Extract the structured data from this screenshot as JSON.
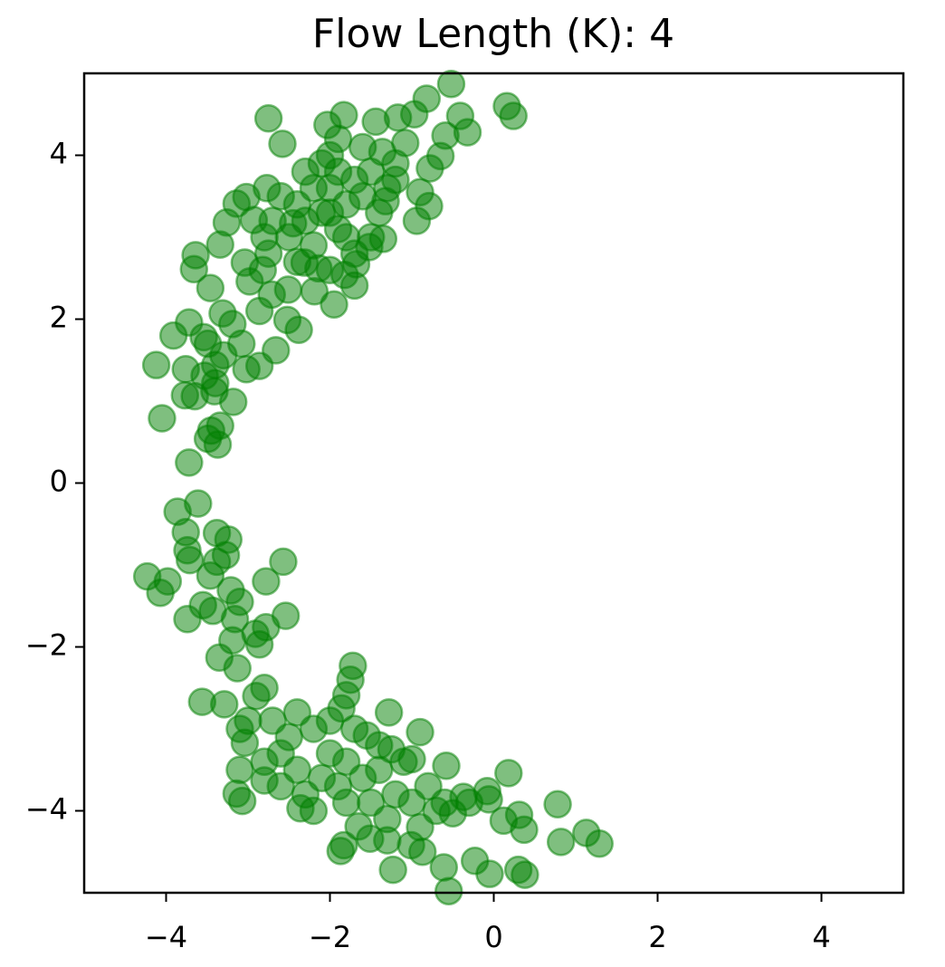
{
  "chart_data": {
    "type": "scatter",
    "title": "Flow Length (K): 4",
    "color": "#008000",
    "alpha": 0.5,
    "xlim": [
      -5,
      5
    ],
    "ylim": [
      -5,
      5
    ],
    "xticks": [
      {
        "value": -4,
        "label": "−4"
      },
      {
        "value": -2,
        "label": "−2"
      },
      0,
      2,
      4
    ],
    "yticks": [
      {
        "value": -4,
        "label": "−4"
      },
      {
        "value": -2,
        "label": "−2"
      },
      0,
      2,
      4
    ],
    "x": [
      -0.52,
      0.16,
      0.24,
      -0.82,
      -2.75,
      -2.58,
      -0.41,
      -0.32,
      -0.59,
      -0.97,
      -1.17,
      -0.94,
      -0.79,
      -0.9,
      -0.78,
      -0.65,
      -1.83,
      -2.03,
      -1.44,
      -1.08,
      -1.36,
      -1.95,
      -1.7,
      -2.38,
      -2.52,
      -2.66,
      -2.86,
      -3.02,
      -3.18,
      -3.41,
      -3.65,
      -3.77,
      -3.76,
      -4.12,
      -4.05,
      -3.91,
      -3.72,
      -3.54,
      -3.49,
      -3.3,
      -3.72,
      -3.49,
      -3.37,
      -3.34,
      -3.45,
      -3.66,
      -3.64,
      -3.46,
      -3.34,
      -3.26,
      -3.14,
      -3.02,
      -2.77,
      -2.93,
      -3.04,
      -2.98,
      -2.82,
      -2.71,
      -2.75,
      -2.45,
      -2.51,
      -2.19,
      -2.86,
      -3.08,
      -3.31,
      -3.19,
      -3.4,
      -3.53,
      -3.4,
      -1.32,
      -1.2,
      -1.35,
      -1.52,
      -1.68,
      -1.82,
      -2.14,
      -2.31,
      -2.0,
      -1.9,
      -2.1,
      -1.8,
      -2.2,
      -1.7,
      -2.3,
      -1.9,
      -2.0,
      -1.6,
      -2.4,
      -1.5,
      -2.5,
      -1.8,
      -2.1,
      -1.6,
      -2.6,
      -1.4,
      -2.2,
      -1.7,
      -2.0,
      -2.4,
      -1.3,
      -2.7,
      -1.9,
      -2.3,
      -1.5,
      -2.8,
      -1.2,
      -2.0,
      -3.86,
      -3.61,
      -3.76,
      -3.74,
      -3.71,
      -4.23,
      -3.98,
      -4.07,
      -3.38,
      -3.24,
      -3.27,
      -3.38,
      -3.46,
      -2.57,
      -2.78,
      -3.21,
      -3.1,
      -3.55,
      -3.43,
      -3.74,
      -2.54,
      -3.16,
      -2.78,
      -2.91,
      -2.86,
      -3.19,
      -3.35,
      -3.13,
      -1.72,
      -1.75,
      -1.8,
      -1.86,
      -3.56,
      -3.29,
      -1.28,
      -0.9,
      -1.55,
      -1.25,
      -1.0,
      -0.58,
      0.18,
      -0.08,
      -0.06,
      -0.37,
      -0.5,
      0.12,
      0.31,
      0.37,
      0.78,
      0.82,
      1.13,
      1.29,
      -0.23,
      -0.61,
      -0.05,
      0.3,
      0.38,
      -0.55,
      -1.23,
      -0.87,
      -1.01,
      -1.3,
      -1.83,
      -1.87,
      -1.51,
      -1.65,
      -3.07,
      -3.14,
      -3.1,
      -3.04,
      -2.8,
      -2.36,
      -2.2,
      -2.0,
      -2.4,
      -1.8,
      -2.5,
      -1.6,
      -2.3,
      -1.9,
      -2.7,
      -2.9,
      -2.6,
      -1.4,
      -1.2,
      -1.0,
      -0.8,
      -0.7,
      -2.1,
      -1.7,
      -2.8,
      -3.0,
      -1.5,
      -1.3,
      -0.9,
      -2.2,
      -2.4,
      -1.1,
      -0.6,
      -0.3,
      -2.0,
      -2.6,
      -3.1,
      -2.8,
      -1.8,
      -1.4
    ],
    "y": [
      4.87,
      4.6,
      4.48,
      4.69,
      4.45,
      4.14,
      4.48,
      4.28,
      4.24,
      4.5,
      4.46,
      3.2,
      3.38,
      3.55,
      3.84,
      3.99,
      4.49,
      4.37,
      4.41,
      4.15,
      4.04,
      2.18,
      2.41,
      1.87,
      1.99,
      1.62,
      1.43,
      1.39,
      0.99,
      1.12,
      1.06,
      1.07,
      1.39,
      1.44,
      0.79,
      1.8,
      1.96,
      1.78,
      1.7,
      1.56,
      0.25,
      0.54,
      0.47,
      0.7,
      0.64,
      2.61,
      2.78,
      2.38,
      2.91,
      3.18,
      3.41,
      3.49,
      3.6,
      3.21,
      2.69,
      2.46,
      2.6,
      2.3,
      2.8,
      3.17,
      2.36,
      2.34,
      2.1,
      1.7,
      2.07,
      1.94,
      1.44,
      1.31,
      1.22,
      3.44,
      3.7,
      2.98,
      2.88,
      2.67,
      2.54,
      2.62,
      2.69,
      3.6,
      3.8,
      3.3,
      3.4,
      3.6,
      3.7,
      3.2,
      3.1,
      4.0,
      3.5,
      3.4,
      3.8,
      3.0,
      3.0,
      3.9,
      4.1,
      3.5,
      3.3,
      2.9,
      2.8,
      2.6,
      2.7,
      3.6,
      3.2,
      4.2,
      3.8,
      3.0,
      3.0,
      3.9,
      3.3,
      -0.35,
      -0.25,
      -0.6,
      -0.82,
      -0.94,
      -1.14,
      -1.2,
      -1.34,
      -0.61,
      -0.69,
      -0.88,
      -0.96,
      -1.13,
      -0.96,
      -1.2,
      -1.31,
      -1.45,
      -1.49,
      -1.56,
      -1.66,
      -1.62,
      -1.66,
      -1.76,
      -1.84,
      -1.97,
      -1.92,
      -2.13,
      -2.26,
      -2.23,
      -2.4,
      -2.59,
      -2.75,
      -2.67,
      -2.7,
      -2.8,
      -3.04,
      -3.08,
      -3.25,
      -3.37,
      -3.45,
      -3.54,
      -3.76,
      -3.86,
      -3.83,
      -4.03,
      -4.12,
      -4.05,
      -4.23,
      -3.92,
      -4.38,
      -4.27,
      -4.4,
      -4.61,
      -4.69,
      -4.77,
      -4.72,
      -4.78,
      -4.98,
      -4.72,
      -4.5,
      -4.42,
      -4.36,
      -4.42,
      -4.49,
      -4.34,
      -4.19,
      -3.88,
      -3.79,
      -3.5,
      -3.17,
      -3.63,
      -3.97,
      -3.0,
      -3.3,
      -3.5,
      -3.4,
      -3.1,
      -3.6,
      -3.8,
      -3.7,
      -2.9,
      -2.6,
      -3.3,
      -3.5,
      -3.8,
      -3.9,
      -3.7,
      -4.0,
      -3.6,
      -3.0,
      -3.4,
      -2.9,
      -3.9,
      -4.1,
      -4.2,
      -4.0,
      -2.8,
      -3.4,
      -3.9,
      -3.9,
      -2.9,
      -3.7,
      -3.0,
      -2.5,
      -3.9,
      -3.2
    ]
  }
}
